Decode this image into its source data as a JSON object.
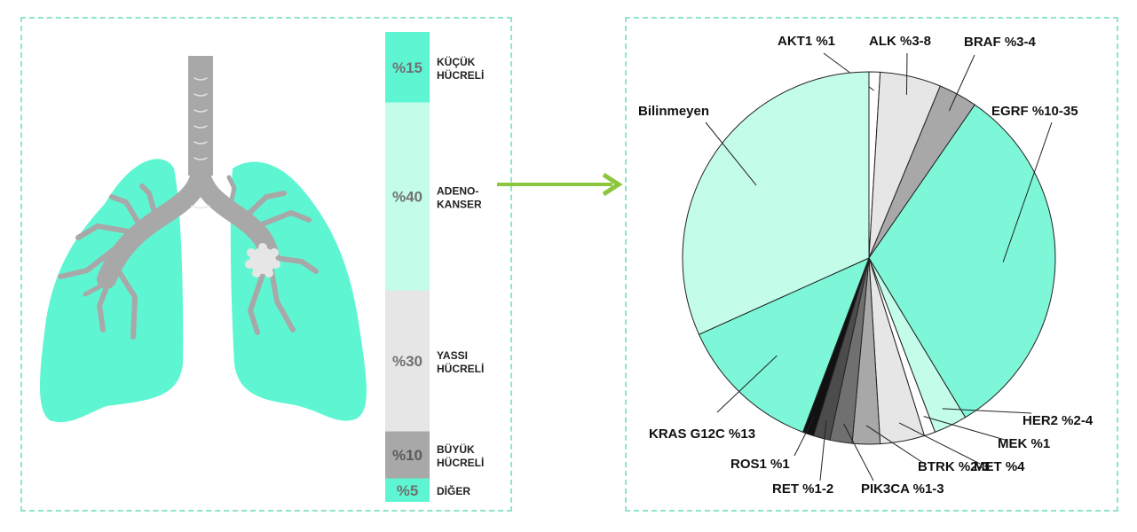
{
  "colors": {
    "mint_strong": "#5ef6d2",
    "mint_mid": "#7ef7d9",
    "mint_light": "#c3fce9",
    "grey_light": "#e6e6e6",
    "grey_mid": "#a8a8a8",
    "grey_dark": "#4c4c4c",
    "arrow": "#8cc63f",
    "panel_border": "#8fe3cf"
  },
  "icons": [
    "lung-icon",
    "tumor-icon",
    "arrow-right-icon"
  ],
  "histology_bar": {
    "segments": [
      {
        "pct": "%15",
        "value": 15,
        "label1": "KÜÇÜK",
        "label2": "HÜCRELİ",
        "color": "#5ef6d2"
      },
      {
        "pct": "%40",
        "value": 40,
        "label1": "ADENO-",
        "label2": "KANSER",
        "color": "#c3fce9"
      },
      {
        "pct": "%30",
        "value": 30,
        "label1": "YASSI",
        "label2": "HÜCRELİ",
        "color": "#e6e6e6"
      },
      {
        "pct": "%10",
        "value": 10,
        "label1": "BÜYÜK",
        "label2": "HÜCRELİ",
        "color": "#a8a8a8"
      },
      {
        "pct": "%5",
        "value": 5,
        "label1": "DİĞER",
        "label2": "",
        "color": "#5ef6d2"
      }
    ]
  },
  "chart_data": [
    {
      "type": "bar",
      "orientation": "stacked-vertical",
      "categories": [
        "KÜÇÜK HÜCRELİ",
        "ADENO-KANSER",
        "YASSI HÜCRELİ",
        "BÜYÜK HÜCRELİ",
        "DİĞER"
      ],
      "values": [
        15,
        40,
        30,
        10,
        5
      ],
      "value_labels": [
        "%15",
        "%40",
        "%30",
        "%10",
        "%5"
      ]
    },
    {
      "type": "pie",
      "slices": [
        {
          "label": "AKT1 %1",
          "value": 1,
          "color": "#ffffff"
        },
        {
          "label": "ALK %3-8",
          "value": 5.5,
          "color": "#e6e6e6"
        },
        {
          "label": "BRAF %3-4",
          "value": 3.5,
          "color": "#a8a8a8"
        },
        {
          "label": "EGRF %10-35",
          "value": 33,
          "color": "#7ef7d9"
        },
        {
          "label": "HER2 %2-4",
          "value": 3,
          "color": "#c3fce9"
        },
        {
          "label": "MEK %1",
          "value": 1,
          "color": "#ffffff"
        },
        {
          "label": "MET %4",
          "value": 4,
          "color": "#e6e6e6"
        },
        {
          "label": "BTRK %2-3",
          "value": 2.5,
          "color": "#a8a8a8"
        },
        {
          "label": "PIK3CA %1-3",
          "value": 2,
          "color": "#707070"
        },
        {
          "label": "RET %1-2",
          "value": 1.5,
          "color": "#4c4c4c"
        },
        {
          "label": "ROS1 %1",
          "value": 1,
          "color": "#111111"
        },
        {
          "label": "KRAS G12C %13",
          "value": 13,
          "color": "#7ef7d9"
        },
        {
          "label": "Bilinmeyen",
          "value": 33,
          "color": "#c3fce9"
        }
      ]
    }
  ]
}
